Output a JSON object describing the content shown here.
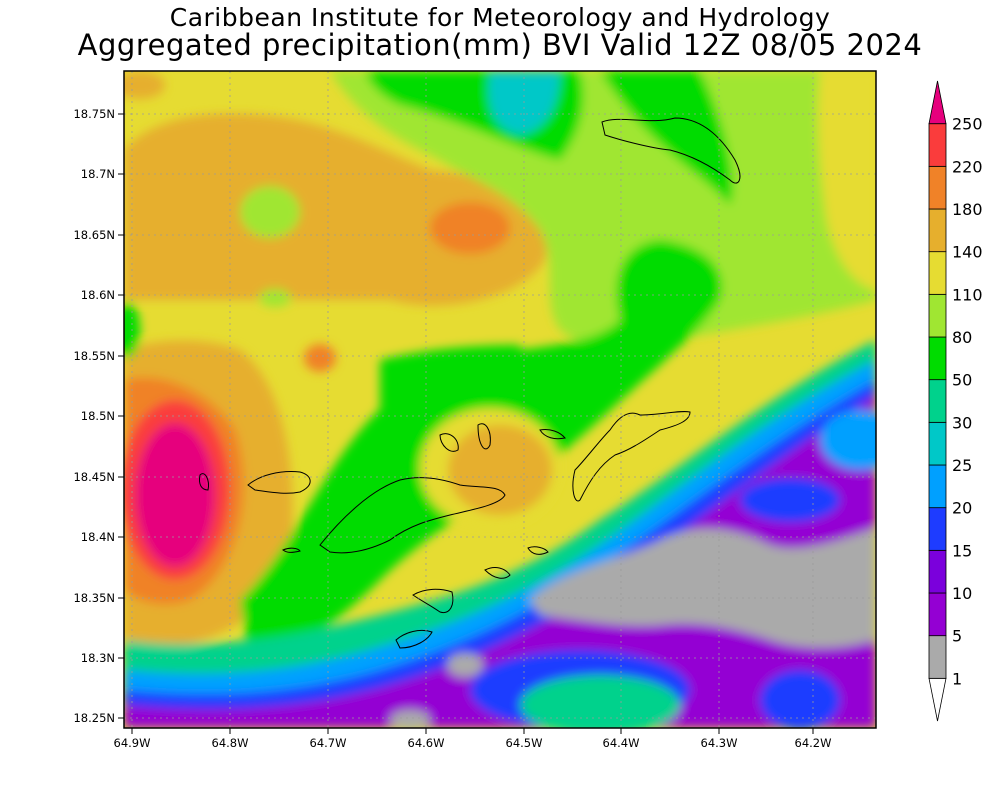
{
  "header": {
    "title": "Caribbean Institute for Meteorology and Hydrology",
    "subtitle": "Aggregated precipitation(mm) BVI Valid 12Z 08/05 2024"
  },
  "axes": {
    "y_ticks": [
      "18.75N",
      "18.7N",
      "18.65N",
      "18.6N",
      "18.55N",
      "18.5N",
      "18.45N",
      "18.4N",
      "18.35N",
      "18.3N",
      "18.25N"
    ],
    "x_ticks": [
      "64.9W",
      "64.8W",
      "64.7W",
      "64.6W",
      "64.5W",
      "64.4W",
      "64.3W",
      "64.2W"
    ]
  },
  "legend": {
    "levels": [
      "1",
      "5",
      "10",
      "15",
      "20",
      "25",
      "30",
      "50",
      "80",
      "110",
      "140",
      "180",
      "220",
      "250"
    ],
    "colors": [
      "#ffffff",
      "#aaaaaa",
      "#9400d3",
      "#7b00dc",
      "#1e3cff",
      "#00a0ff",
      "#00c8c8",
      "#00d28c",
      "#00dc00",
      "#a0e632",
      "#e6dc32",
      "#e6af2d",
      "#f08228",
      "#fa3c3c",
      "#e6007d"
    ]
  }
}
